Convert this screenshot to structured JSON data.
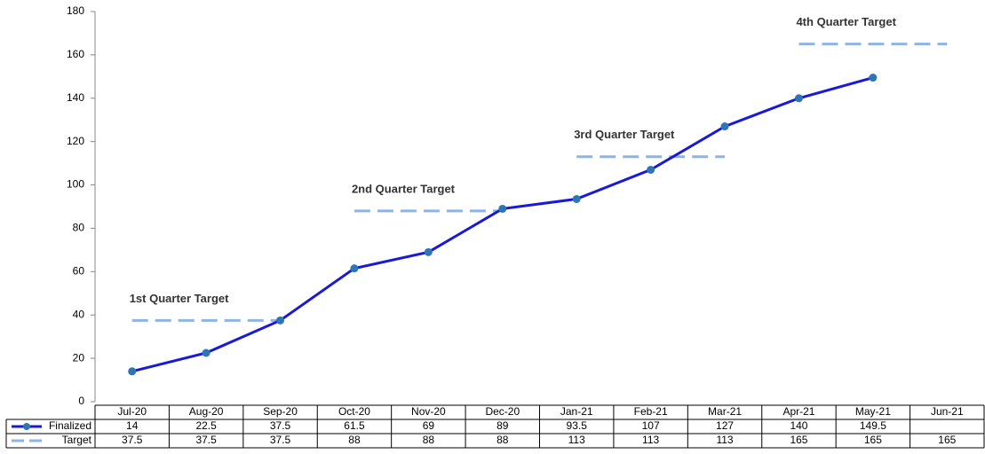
{
  "chart_data": {
    "type": "line",
    "categories": [
      "Jul-20",
      "Aug-20",
      "Sep-20",
      "Oct-20",
      "Nov-20",
      "Dec-20",
      "Jan-21",
      "Feb-21",
      "Mar-21",
      "Apr-21",
      "May-21",
      "Jun-21"
    ],
    "series": [
      {
        "name": "Finalized",
        "color": "#1a1ad6",
        "marker_color": "#2e75b6",
        "dashed": false,
        "values": [
          14,
          22.5,
          37.5,
          61.5,
          69,
          89,
          93.5,
          107,
          127,
          140,
          149.5,
          null
        ]
      },
      {
        "name": "Target",
        "color": "#8db4e2",
        "dashed": true,
        "values": [
          37.5,
          37.5,
          37.5,
          88,
          88,
          88,
          113,
          113,
          113,
          165,
          165,
          165
        ]
      }
    ],
    "annotations": [
      "1st Quarter Target",
      "2nd Quarter Target",
      "3rd Quarter Target",
      "4th Quarter Target"
    ],
    "ylim": [
      0,
      180
    ],
    "yticks": [
      0,
      20,
      40,
      60,
      80,
      100,
      120,
      140,
      160,
      180
    ],
    "grid": false,
    "data_table": true
  }
}
